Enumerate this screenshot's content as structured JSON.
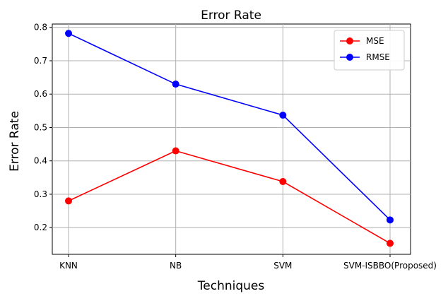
{
  "chart_data": {
    "type": "line",
    "title": "Error Rate",
    "xlabel": "Techniques",
    "ylabel": "Error Rate",
    "categories": [
      "KNN",
      "NB",
      "SVM",
      "SVM-ISBBO(Proposed)"
    ],
    "ylim": [
      0.12,
      0.81
    ],
    "yticks": [
      "0.2",
      "0.3",
      "0.4",
      "0.5",
      "0.6",
      "0.7",
      "0.8"
    ],
    "grid": true,
    "legend_position": "top-right",
    "series": [
      {
        "name": "MSE",
        "color": "#ff0000",
        "values": [
          0.28,
          0.43,
          0.338,
          0.153
        ]
      },
      {
        "name": "RMSE",
        "color": "#0000ff",
        "values": [
          0.782,
          0.63,
          0.537,
          0.223
        ]
      }
    ]
  }
}
